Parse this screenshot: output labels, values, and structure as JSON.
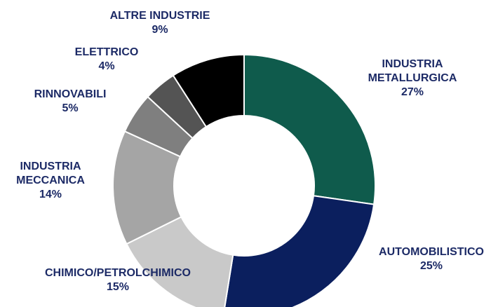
{
  "chart_data": {
    "type": "donut",
    "categories": [
      "INDUSTRIA METALLURGICA",
      "AUTOMOBILISTICO",
      "CHIMICO/PETROLCHIMICO",
      "INDUSTRIA MECCANICA",
      "RINNOVABILI",
      "ELETTRICO",
      "ALTRE INDUSTRIE"
    ],
    "values": [
      27,
      25,
      15,
      14,
      5,
      4,
      9
    ],
    "value_labels": [
      "27%",
      "25%",
      "15%",
      "14%",
      "5%",
      "4%",
      "9%"
    ],
    "colors": [
      "#0f5b4c",
      "#0b1f5e",
      "#c9c9c9",
      "#a5a5a5",
      "#7f7f7f",
      "#545454",
      "#000000"
    ]
  }
}
